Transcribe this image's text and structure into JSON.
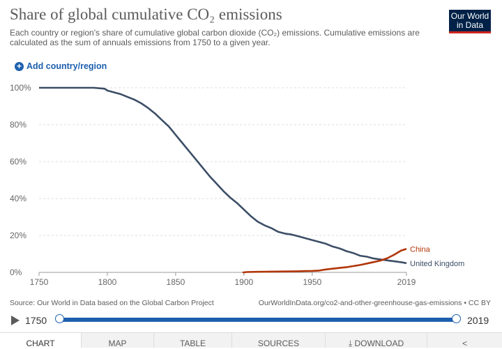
{
  "header": {
    "title": "Share of global cumulative CO₂ emissions",
    "subtitle": "Each country or region's share of cumulative global carbon dioxide (CO₂) emissions. Cumulative emissions are calculated as the sum of annuals emissions from 1750 to a given year.",
    "logo_line1": "Our World",
    "logo_line2": "in Data"
  },
  "controls": {
    "add_country_label": "Add country/region",
    "add_icon": "plus-circle-icon"
  },
  "chart_data": {
    "type": "line",
    "ylim": [
      0,
      100
    ],
    "xlim": [
      1750,
      2019
    ],
    "y_ticks": [
      "0%",
      "20%",
      "40%",
      "60%",
      "80%",
      "100%"
    ],
    "x_ticks": [
      "1750",
      "1800",
      "1850",
      "1900",
      "1950",
      "2019"
    ],
    "grid": "horizontal-dashed",
    "series": [
      {
        "name": "United Kingdom",
        "color": "#3c4e66",
        "x": [
          1750,
          1770,
          1790,
          1798,
          1800,
          1805,
          1810,
          1815,
          1820,
          1825,
          1830,
          1835,
          1840,
          1845,
          1850,
          1855,
          1860,
          1865,
          1870,
          1875,
          1880,
          1885,
          1890,
          1895,
          1900,
          1905,
          1910,
          1915,
          1920,
          1925,
          1930,
          1935,
          1940,
          1945,
          1950,
          1955,
          1960,
          1965,
          1970,
          1975,
          1980,
          1985,
          1990,
          1995,
          2000,
          2005,
          2010,
          2015,
          2019
        ],
        "y": [
          100,
          100,
          100,
          99.5,
          98.5,
          97.5,
          96.5,
          95,
          93.5,
          91.5,
          89,
          86,
          82.5,
          79,
          74.5,
          70,
          65.5,
          61,
          56.5,
          52,
          48,
          44,
          40.5,
          37.5,
          34,
          30.5,
          27.5,
          25.5,
          24,
          22,
          21,
          20.5,
          19.5,
          18.5,
          17.5,
          16.5,
          15.5,
          14,
          13,
          11.5,
          10.5,
          9,
          8.5,
          7.5,
          7,
          6.5,
          6,
          5.5,
          5
        ]
      },
      {
        "name": "China",
        "color": "#b13507",
        "x": [
          1899,
          1900,
          1902,
          1910,
          1920,
          1930,
          1940,
          1945,
          1950,
          1955,
          1960,
          1965,
          1970,
          1975,
          1980,
          1985,
          1990,
          1995,
          2000,
          2005,
          2010,
          2015,
          2019
        ],
        "y": [
          0,
          0,
          0.2,
          0.3,
          0.4,
          0.5,
          0.6,
          0.7,
          0.8,
          1.0,
          1.6,
          2.0,
          2.4,
          2.8,
          3.4,
          4.0,
          4.8,
          5.6,
          6.4,
          7.7,
          9.6,
          11.8,
          12.7
        ]
      }
    ]
  },
  "footer": {
    "source": "Source: Our World in Data based on the Global Carbon Project",
    "url": "OurWorldInData.org/co2-and-other-greenhouse-gas-emissions • CC BY"
  },
  "timeline": {
    "start": "1750",
    "end": "2019",
    "play_icon": "play-icon"
  },
  "tabs": [
    {
      "label": "Chart",
      "active": true
    },
    {
      "label": "Map"
    },
    {
      "label": "Table"
    },
    {
      "label": "Sources"
    },
    {
      "label": "Download",
      "icon": "download-icon"
    },
    {
      "label": "",
      "icon": "share-icon"
    }
  ]
}
